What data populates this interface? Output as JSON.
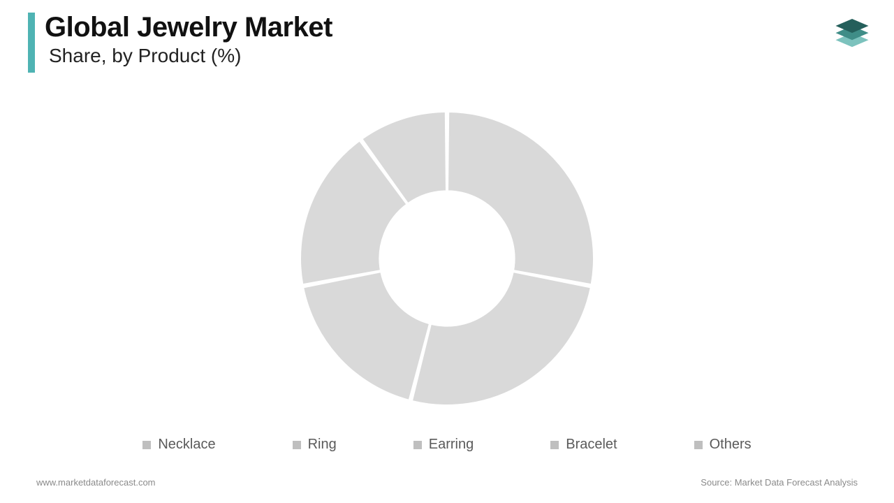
{
  "header": {
    "title": "Global Jewelry Market",
    "subtitle": "Share, by Product (%)",
    "accent_color": "#4fb3b3",
    "title_fontsize": 40,
    "subtitle_fontsize": 28,
    "title_color": "#111111",
    "subtitle_color": "#222222"
  },
  "logo": {
    "layer_top_color": "#245f5b",
    "layer_mid_color": "#3f8d87",
    "layer_bottom_color": "#7cc2bd"
  },
  "chart": {
    "type": "donut",
    "inner_radius_ratio": 0.46,
    "outer_radius": 210,
    "gap_deg": 1.2,
    "start_angle_deg": -90,
    "background_color": "#ffffff",
    "slice_color": "#d9d9d9",
    "slice_stroke": "#ffffff",
    "slice_stroke_width": 2,
    "categories": [
      "Necklace",
      "Ring",
      "Earring",
      "Bracelet",
      "Others"
    ],
    "values": [
      28,
      26,
      18,
      18,
      10
    ]
  },
  "legend": {
    "swatch_color": "#bfbfbf",
    "text_color": "#5a5a5a",
    "fontsize": 20,
    "marker_size": 12,
    "items": [
      "Necklace",
      "Ring",
      "Earring",
      "Bracelet",
      "Others"
    ]
  },
  "footer": {
    "left": "www.marketdataforecast.com",
    "right": "Source: Market Data Forecast Analysis",
    "fontsize": 13,
    "text_color": "#8a8a8a"
  }
}
